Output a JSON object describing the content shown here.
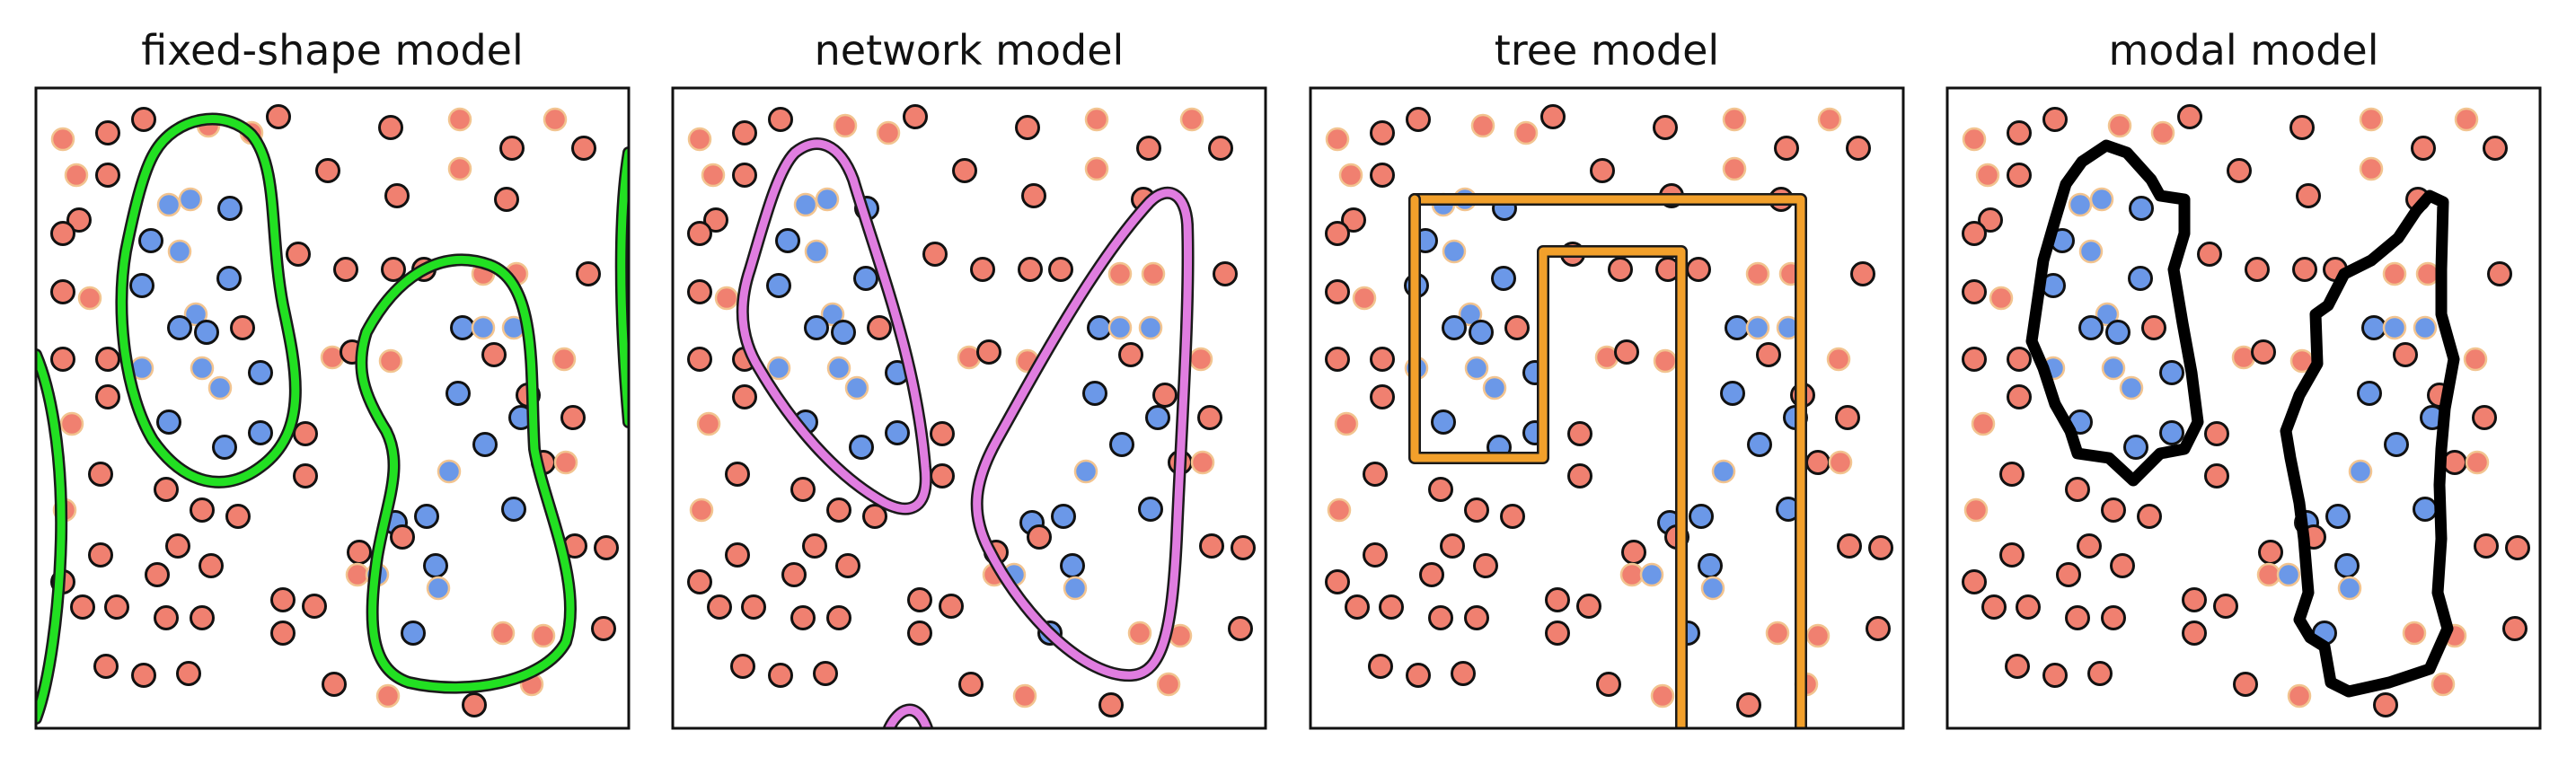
{
  "colors": {
    "red": "#f08070",
    "blue": "#6b98e8",
    "point_edge_dark": "#111111",
    "point_edge_faded": "#f2c490",
    "fixed_shape_boundary": "#22e022",
    "network_boundary": "#e07de0",
    "tree_boundary": "#f2a02b",
    "modal_boundary": "#000000"
  },
  "panels": [
    {
      "id": "fixed-shape",
      "title": "fixed-shape model",
      "boundary_color_key": "fixed_shape_boundary",
      "boundary_style": "smooth"
    },
    {
      "id": "network",
      "title": "network model",
      "boundary_color_key": "network_boundary",
      "boundary_style": "smooth"
    },
    {
      "id": "tree",
      "title": "tree model",
      "boundary_color_key": "tree_boundary",
      "boundary_style": "rect"
    },
    {
      "id": "modal",
      "title": "modal model",
      "boundary_color_key": "modal_boundary",
      "boundary_style": "jagged"
    }
  ]
}
